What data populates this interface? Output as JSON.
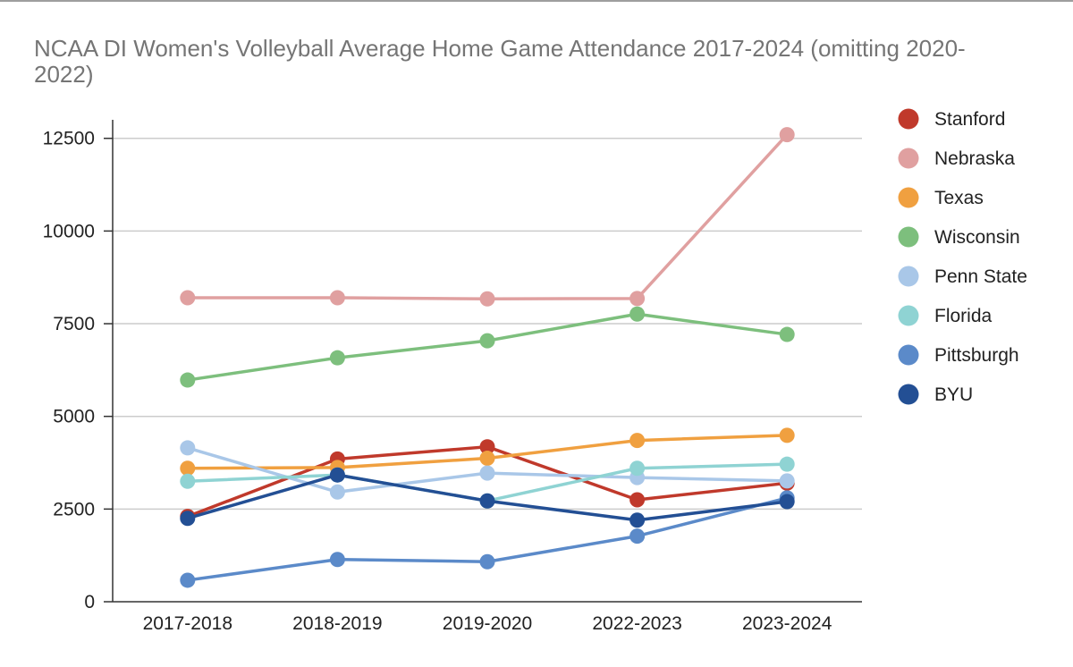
{
  "chart_data": {
    "type": "line",
    "title": "NCAA DI Women's Volleyball Average Home Game Attendance 2017-2024 (omitting 2020-2022)",
    "xlabel": "",
    "ylabel": "",
    "categories": [
      "2017-2018",
      "2018-2019",
      "2019-2020",
      "2022-2023",
      "2023-2024"
    ],
    "ylim": [
      0,
      13000
    ],
    "yticks": [
      0,
      2500,
      5000,
      7500,
      10000,
      12500
    ],
    "grid": true,
    "legend_position": "right",
    "series": [
      {
        "name": "Stanford",
        "color": "#c0392b",
        "values": [
          2300,
          3850,
          4180,
          2750,
          3200
        ]
      },
      {
        "name": "Nebraska",
        "color": "#e0a0a0",
        "values": [
          8200,
          8200,
          8170,
          8180,
          12600
        ]
      },
      {
        "name": "Texas",
        "color": "#f0a040",
        "values": [
          3600,
          3620,
          3870,
          4350,
          4490
        ]
      },
      {
        "name": "Wisconsin",
        "color": "#7dbf7d",
        "values": [
          5980,
          6580,
          7040,
          7760,
          7210
        ]
      },
      {
        "name": "Penn State",
        "color": "#a9c7e8",
        "values": [
          4150,
          2960,
          3470,
          3350,
          3260
        ]
      },
      {
        "name": "Florida",
        "color": "#8fd3d3",
        "values": [
          3250,
          3420,
          2720,
          3600,
          3710
        ]
      },
      {
        "name": "Pittsburgh",
        "color": "#5b8ac9",
        "values": [
          580,
          1140,
          1080,
          1770,
          2800
        ]
      },
      {
        "name": "BYU",
        "color": "#234f94",
        "values": [
          2250,
          3420,
          2720,
          2200,
          2700
        ]
      }
    ]
  }
}
